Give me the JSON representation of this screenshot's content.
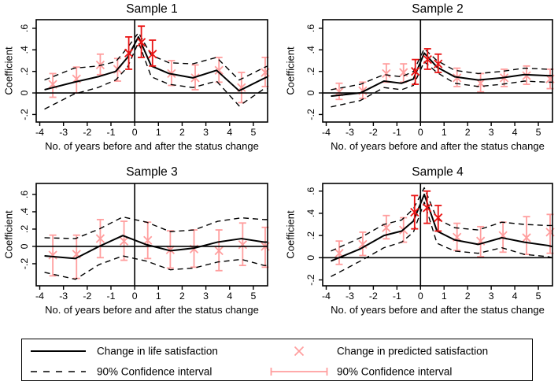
{
  "figure": {
    "ylabel": "Coefficient",
    "xlabel": "No. of years before and after the status change"
  },
  "colors": {
    "line": "#000000",
    "ci_dash": "#000000",
    "marker_pink": "#ff9e9e",
    "marker_red": "#e91414",
    "frame": "#000000",
    "text": "#000000",
    "background": "#ffffff"
  },
  "chart_data": [
    {
      "type": "line",
      "title": "Sample 1",
      "xlabel": "No. of years before and after the status change",
      "ylabel": "Coefficient",
      "xlim": [
        -4.15,
        5.6
      ],
      "ylim": [
        -0.27,
        0.68
      ],
      "x_tick_values": [
        -4,
        -3,
        -2,
        -1,
        0,
        1,
        2,
        3,
        4,
        5
      ],
      "x_tick_labels": [
        "-4",
        "-3",
        "-2",
        "-1",
        "0",
        "1",
        "2",
        "3",
        "4",
        "5"
      ],
      "y_tick_values": [
        0.6,
        0.4,
        0.2,
        0,
        -0.2
      ],
      "y_tick_labels": [
        ".6",
        ".4",
        ".2",
        "0",
        "-.2"
      ],
      "ref_line_x": 0,
      "ref_line_y": 0,
      "grid": false,
      "line": {
        "name": "Change in life satisfaction",
        "x": [
          -3.8,
          -2.55,
          -1.55,
          -0.8,
          -0.3,
          0.16,
          0.7,
          1.45,
          2.45,
          3.45,
          4.4,
          5.4,
          5.6
        ],
        "y": [
          0.03,
          0.1,
          0.15,
          0.2,
          0.33,
          0.52,
          0.25,
          0.18,
          0.14,
          0.21,
          0.02,
          0.13,
          0.15
        ]
      },
      "ci_upper": {
        "name": "90% Confidence interval",
        "x": [
          -3.8,
          -2.55,
          -1.55,
          -0.8,
          -0.3,
          0.16,
          0.7,
          1.45,
          2.45,
          3.45,
          4.4,
          5.4,
          5.6
        ],
        "y": [
          0.12,
          0.23,
          0.25,
          0.29,
          0.42,
          0.56,
          0.35,
          0.28,
          0.27,
          0.33,
          0.12,
          0.23,
          0.25
        ]
      },
      "ci_lower": {
        "name": "90% Confidence interval",
        "x": [
          -3.8,
          -2.55,
          -1.55,
          -0.8,
          -0.3,
          0.16,
          0.7,
          1.45,
          2.45,
          3.45,
          4.4,
          5.4,
          5.6
        ],
        "y": [
          -0.15,
          -0.01,
          0.05,
          0.12,
          0.24,
          0.47,
          0.15,
          0.08,
          0.05,
          0.11,
          -0.12,
          0.03,
          0.04
        ]
      },
      "markers": {
        "name": "Change in predicted satisfaction",
        "ci_name": "90% Confidence interval",
        "points": [
          [
            -3.45,
            0.08,
            -0.04,
            0.18,
            "pink"
          ],
          [
            -2.45,
            0.13,
            0.0,
            0.24,
            "pink"
          ],
          [
            -1.45,
            0.26,
            0.17,
            0.36,
            "pink"
          ],
          [
            -0.72,
            0.22,
            0.11,
            0.32,
            "pink"
          ],
          [
            -0.25,
            0.37,
            0.22,
            0.52,
            "red"
          ],
          [
            0.28,
            0.47,
            0.33,
            0.62,
            "red"
          ],
          [
            0.75,
            0.36,
            0.25,
            0.49,
            "red"
          ],
          [
            1.55,
            0.18,
            0.07,
            0.3,
            "pink"
          ],
          [
            2.55,
            0.14,
            0.03,
            0.26,
            "pink"
          ],
          [
            3.55,
            0.21,
            0.1,
            0.33,
            "pink"
          ],
          [
            4.5,
            0.05,
            -0.09,
            0.19,
            "pink"
          ],
          [
            5.5,
            0.19,
            0.06,
            0.33,
            "pink"
          ]
        ]
      }
    },
    {
      "type": "line",
      "title": "Sample 2",
      "xlabel": "No. of years before and after the status change",
      "ylabel": "Coefficient",
      "xlim": [
        -4.15,
        5.6
      ],
      "ylim": [
        -0.27,
        0.68
      ],
      "x_tick_values": [
        -4,
        -3,
        -2,
        -1,
        0,
        1,
        2,
        3,
        4,
        5
      ],
      "x_tick_labels": [
        "-4",
        "-3",
        "-2",
        "-1",
        "0",
        "1",
        "2",
        "3",
        "4",
        "5"
      ],
      "y_tick_values": [
        0.6,
        0.4,
        0.2,
        0,
        -0.2
      ],
      "y_tick_labels": [
        ".6",
        ".4",
        ".2",
        "0",
        "-.2"
      ],
      "ref_line_x": 0,
      "ref_line_y": 0,
      "grid": false,
      "line": {
        "name": "Change in life satisfaction",
        "x": [
          -3.8,
          -2.55,
          -1.55,
          -0.8,
          -0.3,
          0.16,
          0.7,
          1.45,
          2.45,
          3.45,
          4.4,
          5.4,
          5.6
        ],
        "y": [
          -0.03,
          0.0,
          0.11,
          0.09,
          0.13,
          0.37,
          0.24,
          0.15,
          0.12,
          0.14,
          0.17,
          0.16,
          0.16
        ]
      },
      "ci_upper": {
        "name": "90% Confidence interval",
        "x": [
          -3.8,
          -2.55,
          -1.55,
          -0.8,
          -0.3,
          0.16,
          0.7,
          1.45,
          2.45,
          3.45,
          4.4,
          5.4,
          5.6
        ],
        "y": [
          0.03,
          0.08,
          0.17,
          0.15,
          0.2,
          0.41,
          0.3,
          0.21,
          0.18,
          0.2,
          0.23,
          0.22,
          0.22
        ]
      },
      "ci_lower": {
        "name": "90% Confidence interval",
        "x": [
          -3.8,
          -2.55,
          -1.55,
          -0.8,
          -0.3,
          0.16,
          0.7,
          1.45,
          2.45,
          3.45,
          4.4,
          5.4,
          5.6
        ],
        "y": [
          -0.13,
          -0.07,
          0.05,
          0.03,
          0.07,
          0.29,
          0.19,
          0.09,
          0.06,
          0.08,
          0.11,
          0.1,
          0.1
        ]
      },
      "markers": {
        "name": "Change in predicted satisfaction",
        "ci_name": "90% Confidence interval",
        "points": [
          [
            -3.45,
            0.01,
            -0.06,
            0.09,
            "pink"
          ],
          [
            -2.45,
            0.02,
            -0.05,
            0.1,
            "pink"
          ],
          [
            -1.45,
            0.18,
            0.1,
            0.27,
            "pink"
          ],
          [
            -0.72,
            0.19,
            0.1,
            0.27,
            "pink"
          ],
          [
            -0.22,
            0.2,
            0.08,
            0.31,
            "red"
          ],
          [
            0.3,
            0.31,
            0.22,
            0.41,
            "red"
          ],
          [
            0.75,
            0.27,
            0.19,
            0.36,
            "red"
          ],
          [
            1.55,
            0.14,
            0.06,
            0.23,
            "pink"
          ],
          [
            2.55,
            0.09,
            0.01,
            0.18,
            "pink"
          ],
          [
            3.55,
            0.14,
            0.06,
            0.22,
            "pink"
          ],
          [
            4.5,
            0.16,
            0.08,
            0.25,
            "pink"
          ],
          [
            5.5,
            0.13,
            0.04,
            0.22,
            "pink"
          ]
        ]
      }
    },
    {
      "type": "line",
      "title": "Sample 3",
      "xlabel": "No. of years before and after the status change",
      "ylabel": "Coefficient",
      "xlim": [
        -4.15,
        5.6
      ],
      "ylim": [
        -0.455,
        0.727
      ],
      "x_tick_values": [
        -4,
        -3,
        -2,
        -1,
        0,
        1,
        2,
        3,
        4,
        5
      ],
      "x_tick_labels": [
        "-4",
        "-3",
        "-2",
        "-1",
        "0",
        "1",
        "2",
        "3",
        "4",
        "5"
      ],
      "y_tick_values": [
        0.6,
        0.4,
        0.2,
        0,
        -0.2
      ],
      "y_tick_labels": [
        ".6",
        ".4",
        ".2",
        "0",
        "-.2"
      ],
      "ref_line_x": 0,
      "ref_line_y": 0,
      "grid": false,
      "line": {
        "name": "Change in life satisfaction",
        "x": [
          -3.8,
          -2.5,
          -1.5,
          -0.5,
          0.5,
          1.5,
          2.5,
          3.5,
          4.5,
          5.45,
          5.6
        ],
        "y": [
          -0.11,
          -0.14,
          0.0,
          0.125,
          0.02,
          -0.05,
          -0.02,
          0.05,
          0.09,
          0.05,
          0.05
        ]
      },
      "ci_upper": {
        "name": "90% Confidence interval",
        "x": [
          -3.8,
          -2.5,
          -1.5,
          -0.5,
          0.5,
          1.5,
          2.5,
          3.5,
          4.5,
          5.45,
          5.6
        ],
        "y": [
          0.1,
          0.09,
          0.2,
          0.34,
          0.28,
          0.17,
          0.19,
          0.29,
          0.33,
          0.31,
          0.31
        ]
      },
      "ci_lower": {
        "name": "90% Confidence interval",
        "x": [
          -3.8,
          -2.5,
          -1.5,
          -0.5,
          0.5,
          1.5,
          2.5,
          3.5,
          4.5,
          5.45,
          5.6
        ],
        "y": [
          -0.3,
          -0.38,
          -0.21,
          -0.11,
          -0.17,
          -0.27,
          -0.25,
          -0.18,
          -0.15,
          -0.22,
          -0.22
        ]
      },
      "markers": {
        "name": "Change in predicted satisfaction",
        "ci_name": "90% Confidence interval",
        "points": [
          [
            -3.45,
            -0.1,
            -0.34,
            0.13,
            "pink"
          ],
          [
            -2.45,
            -0.09,
            -0.37,
            0.13,
            "pink"
          ],
          [
            -1.45,
            0.09,
            -0.13,
            0.31,
            "pink"
          ],
          [
            -0.45,
            0.06,
            -0.16,
            0.29,
            "pink"
          ],
          [
            0.55,
            0.07,
            -0.14,
            0.28,
            "pink"
          ],
          [
            1.5,
            -0.04,
            -0.25,
            0.18,
            "pink"
          ],
          [
            2.5,
            -0.03,
            -0.24,
            0.19,
            "pink"
          ],
          [
            3.55,
            -0.05,
            -0.28,
            0.19,
            "pink"
          ],
          [
            4.55,
            0.02,
            -0.22,
            0.27,
            "pink"
          ],
          [
            5.5,
            0.0,
            -0.24,
            0.22,
            "pink"
          ]
        ]
      }
    },
    {
      "type": "line",
      "title": "Sample 4",
      "xlabel": "No. of years before and after the status change",
      "ylabel": "Coefficient",
      "xlim": [
        -4.15,
        5.6
      ],
      "ylim": [
        -0.253,
        0.669
      ],
      "x_tick_values": [
        -4,
        -3,
        -2,
        -1,
        0,
        1,
        2,
        3,
        4,
        5
      ],
      "x_tick_labels": [
        "-4",
        "-3",
        "-2",
        "-1",
        "0",
        "1",
        "2",
        "3",
        "4",
        "5"
      ],
      "y_tick_values": [
        0.6,
        0.4,
        0.2,
        0,
        -0.2
      ],
      "y_tick_labels": [
        ".6",
        ".4",
        ".2",
        "0",
        "-.2"
      ],
      "ref_line_x": 0,
      "ref_line_y": 0,
      "grid": false,
      "line": {
        "name": "Change in life satisfaction",
        "x": [
          -3.8,
          -2.55,
          -1.55,
          -0.8,
          -0.3,
          0.16,
          0.7,
          1.45,
          2.45,
          3.45,
          4.4,
          5.4,
          5.6
        ],
        "y": [
          -0.03,
          0.08,
          0.2,
          0.24,
          0.33,
          0.57,
          0.24,
          0.16,
          0.12,
          0.18,
          0.14,
          0.11,
          0.1
        ]
      },
      "ci_upper": {
        "name": "90% Confidence interval",
        "x": [
          -3.8,
          -2.55,
          -1.55,
          -0.8,
          -0.3,
          0.16,
          0.7,
          1.45,
          2.45,
          3.45,
          4.4,
          5.4,
          5.6
        ],
        "y": [
          0.06,
          0.18,
          0.3,
          0.34,
          0.44,
          0.63,
          0.35,
          0.27,
          0.25,
          0.32,
          0.3,
          0.29,
          0.29
        ]
      },
      "ci_lower": {
        "name": "90% Confidence interval",
        "x": [
          -3.8,
          -2.55,
          -1.55,
          -0.8,
          -0.3,
          0.16,
          0.7,
          1.45,
          2.45,
          3.45,
          4.4,
          5.4,
          5.6
        ],
        "y": [
          -0.17,
          -0.03,
          0.09,
          0.14,
          0.23,
          0.5,
          0.13,
          0.06,
          0.04,
          0.09,
          0.03,
          0.01,
          0.0
        ]
      },
      "markers": {
        "name": "Change in predicted satisfaction",
        "ci_name": "90% Confidence interval",
        "points": [
          [
            -3.45,
            0.04,
            -0.06,
            0.15,
            "pink"
          ],
          [
            -2.45,
            0.12,
            0.02,
            0.23,
            "pink"
          ],
          [
            -1.45,
            0.27,
            0.17,
            0.38,
            "pink"
          ],
          [
            -0.72,
            0.25,
            0.14,
            0.36,
            "pink"
          ],
          [
            -0.25,
            0.41,
            0.26,
            0.56,
            "red"
          ],
          [
            0.28,
            0.45,
            0.31,
            0.6,
            "red"
          ],
          [
            0.75,
            0.36,
            0.24,
            0.47,
            "red"
          ],
          [
            1.55,
            0.185,
            0.065,
            0.31,
            "pink"
          ],
          [
            2.55,
            0.15,
            0.01,
            0.28,
            "pink"
          ],
          [
            3.5,
            0.2,
            0.05,
            0.32,
            "pink"
          ],
          [
            4.5,
            0.18,
            0.03,
            0.37,
            "pink"
          ],
          [
            5.5,
            0.23,
            0.04,
            0.39,
            "pink"
          ]
        ]
      }
    }
  ],
  "legend": {
    "items": [
      {
        "symbol": "solid-line",
        "label": "Change in life satisfaction"
      },
      {
        "symbol": "dashed-line",
        "label": "90% Confidence interval"
      },
      {
        "symbol": "x-marker",
        "label": "Change in predicted satisfaction"
      },
      {
        "symbol": "error-bar",
        "label": "90% Confidence interval"
      }
    ]
  }
}
